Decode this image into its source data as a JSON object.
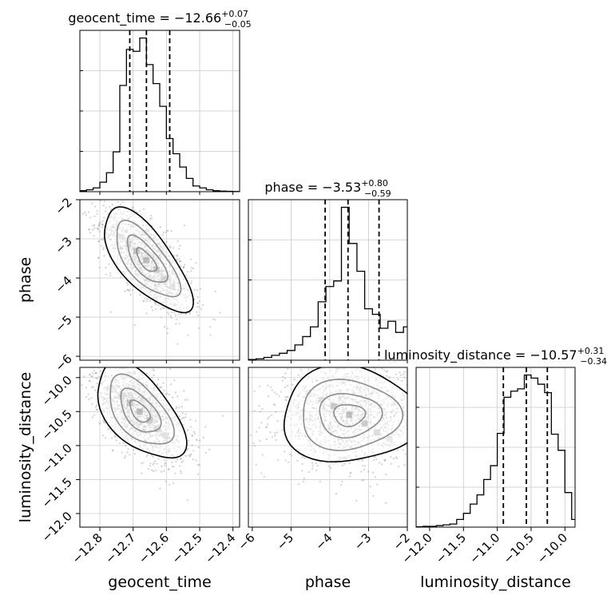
{
  "chart_data": {
    "type": "scatter",
    "description_type": "corner",
    "parameters": [
      {
        "key": "geocent_time",
        "label": "geocent_time",
        "title": "geocent_time = −12.66",
        "sup": "+0.07",
        "sub": "−0.05",
        "range": [
          -12.86,
          -12.38
        ],
        "ticks": [
          -12.8,
          -12.7,
          -12.6,
          -12.5,
          -12.4
        ],
        "tick_labels": [
          "−12.8",
          "−12.7",
          "−12.6",
          "−12.5",
          "−12.4"
        ],
        "quantiles": [
          -12.71,
          -12.66,
          -12.59
        ],
        "hist_x": [
          -12.86,
          -12.84,
          -12.82,
          -12.8,
          -12.78,
          -12.76,
          -12.74,
          -12.72,
          -12.7,
          -12.68,
          -12.66,
          -12.64,
          -12.62,
          -12.6,
          -12.58,
          -12.56,
          -12.54,
          -12.52,
          -12.5,
          -12.48,
          -12.46,
          -12.44,
          -12.42,
          -12.4
        ],
        "hist_y": [
          0.5,
          1.0,
          2.0,
          5.0,
          10.0,
          21.0,
          56.0,
          75.0,
          74.0,
          81.0,
          67.0,
          57.0,
          45.0,
          28.0,
          20.0,
          13.0,
          7.0,
          3.0,
          2.0,
          1.0,
          0.5,
          0.3,
          0.2,
          0.1
        ]
      },
      {
        "key": "phase",
        "label": "phase",
        "title": "phase = −3.53",
        "sup": "+0.80",
        "sub": "−0.59",
        "range": [
          -6.1,
          -2.0
        ],
        "ticks": [
          -6,
          -5,
          -4,
          -3,
          -2
        ],
        "tick_labels": [
          "−6",
          "−5",
          "−4",
          "−3",
          "−2"
        ],
        "quantiles": [
          -4.12,
          -3.53,
          -2.73
        ],
        "hist_x": [
          -6.1,
          -5.9,
          -5.7,
          -5.5,
          -5.3,
          -5.1,
          -4.9,
          -4.7,
          -4.5,
          -4.3,
          -4.1,
          -3.9,
          -3.7,
          -3.5,
          -3.3,
          -3.1,
          -2.9,
          -2.7,
          -2.5,
          -2.3,
          -2.1
        ],
        "hist_y": [
          0.5,
          1.0,
          2.0,
          3.5,
          5.0,
          7.0,
          11.0,
          17.0,
          24.0,
          42.0,
          53.0,
          57.0,
          110.0,
          84.0,
          64.0,
          37.0,
          33.0,
          23.0,
          28.0,
          20.0,
          24.0
        ]
      },
      {
        "key": "luminosity_distance",
        "label": "luminosity_distance",
        "title": "luminosity_distance = −10.57",
        "sup": "+0.31",
        "sub": "−0.34",
        "range": [
          -12.2,
          -9.85
        ],
        "ticks": [
          -12.0,
          -11.5,
          -11.0,
          -10.5,
          -10.0
        ],
        "tick_labels": [
          "−12.0",
          "−11.5",
          "−11.0",
          "−10.5",
          "−10.0"
        ],
        "quantiles": [
          -10.91,
          -10.57,
          -10.26
        ],
        "hist_x": [
          -12.2,
          -12.1,
          -12.0,
          -11.9,
          -11.8,
          -11.7,
          -11.6,
          -11.5,
          -11.4,
          -11.3,
          -11.2,
          -11.1,
          -11.0,
          -10.9,
          -10.8,
          -10.7,
          -10.6,
          -10.5,
          -10.4,
          -10.3,
          -10.2,
          -10.1,
          -10.0,
          -9.9
        ],
        "hist_y": [
          0.5,
          1.0,
          1.0,
          2.0,
          3.0,
          4.0,
          10.0,
          18.0,
          30.0,
          42.0,
          62.0,
          80.0,
          122.0,
          169.0,
          177.0,
          180.0,
          198.0,
          194.0,
          186.0,
          175.0,
          121.0,
          100.0,
          45.0,
          10.0
        ]
      }
    ],
    "pairs": [
      {
        "x": "geocent_time",
        "y": "phase",
        "center": [
          -12.66,
          -3.55
        ],
        "spread": [
          0.06,
          0.6
        ],
        "correlation": -0.7
      },
      {
        "x": "geocent_time",
        "y": "luminosity_distance",
        "center": [
          -12.68,
          -10.5
        ],
        "spread": [
          0.06,
          0.32
        ],
        "correlation": -0.55
      },
      {
        "x": "phase",
        "y": "luminosity_distance",
        "center": [
          -3.5,
          -10.55
        ],
        "spread": [
          0.8,
          0.32
        ],
        "correlation": 0.0
      }
    ],
    "grid": true,
    "colors": {
      "points": "#9a9a9a",
      "contours": "#000000",
      "quantile_lines": "#000000"
    }
  }
}
